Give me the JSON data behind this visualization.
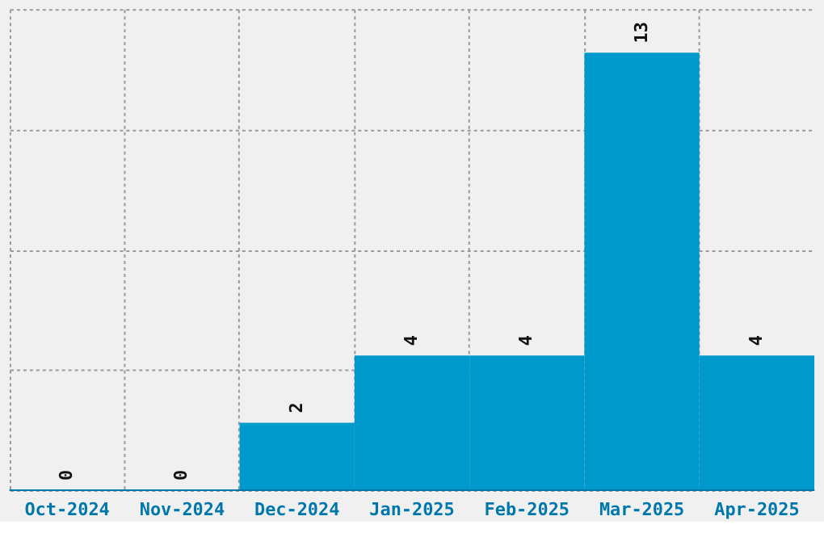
{
  "chart_data": {
    "type": "bar",
    "categories": [
      "Oct-2024",
      "Nov-2024",
      "Dec-2024",
      "Jan-2025",
      "Feb-2025",
      "Mar-2025",
      "Apr-2025"
    ],
    "values": [
      0,
      0,
      2,
      4,
      4,
      13,
      4
    ],
    "color": "#0099cc",
    "data_labels": true,
    "grid": true,
    "tick_labels": "x",
    "ylim": [
      0,
      14.3
    ],
    "yticks": [
      {
        "value": 0,
        "label": null
      },
      {
        "value": 3.575,
        "label": null
      },
      {
        "value": 7.15,
        "label": null
      },
      {
        "value": 10.725,
        "label": null
      },
      {
        "value": 14.3,
        "label": null
      }
    ]
  }
}
